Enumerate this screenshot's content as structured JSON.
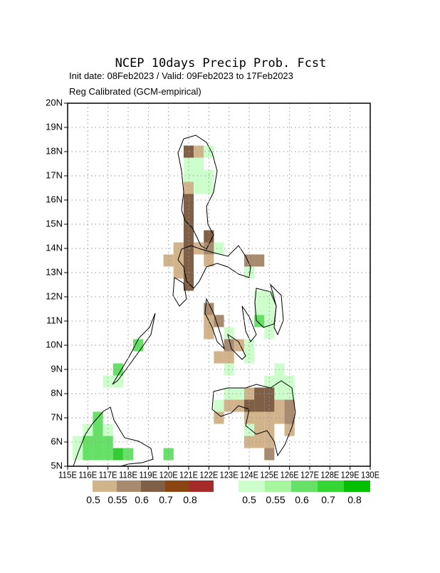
{
  "header": {
    "title": "NCEP 10days Precip Prob. Fcst",
    "line1": "Init date: 08Feb2023 / Valid: 09Feb2023 to 17Feb2023",
    "line2": "Reg Calibrated (GCM-empirical)"
  },
  "map": {
    "xlim": [
      115,
      130
    ],
    "ylim": [
      5,
      20
    ],
    "grid": true,
    "xticks": [
      {
        "value": 115,
        "label": "115E"
      },
      {
        "value": 116,
        "label": "116E"
      },
      {
        "value": 117,
        "label": "117E"
      },
      {
        "value": 118,
        "label": "118E"
      },
      {
        "value": 119,
        "label": "119E"
      },
      {
        "value": 120,
        "label": "120E"
      },
      {
        "value": 121,
        "label": "121E"
      },
      {
        "value": 122,
        "label": "122E"
      },
      {
        "value": 123,
        "label": "123E"
      },
      {
        "value": 124,
        "label": "124E"
      },
      {
        "value": 125,
        "label": "125E"
      },
      {
        "value": 126,
        "label": "126E"
      },
      {
        "value": 127,
        "label": "127E"
      },
      {
        "value": 128,
        "label": "128E"
      },
      {
        "value": 129,
        "label": "129E"
      },
      {
        "value": 130,
        "label": "130E"
      }
    ],
    "yticks": [
      {
        "value": 5,
        "label": "5N"
      },
      {
        "value": 6,
        "label": "6N"
      },
      {
        "value": 7,
        "label": "7N"
      },
      {
        "value": 8,
        "label": "8N"
      },
      {
        "value": 9,
        "label": "9N"
      },
      {
        "value": 10,
        "label": "10N"
      },
      {
        "value": 11,
        "label": "11N"
      },
      {
        "value": 12,
        "label": "12N"
      },
      {
        "value": 13,
        "label": "13N"
      },
      {
        "value": 14,
        "label": "14N"
      },
      {
        "value": 15,
        "label": "15N"
      },
      {
        "value": 16,
        "label": "16N"
      },
      {
        "value": 17,
        "label": "17N"
      },
      {
        "value": 18,
        "label": "18N"
      },
      {
        "value": 19,
        "label": "19N"
      },
      {
        "value": 20,
        "label": "20N"
      }
    ],
    "cells": [
      {
        "lon": 121,
        "lat": 18,
        "color": "#7f5f46"
      },
      {
        "lon": 121.5,
        "lat": 18,
        "color": "#d2b48c"
      },
      {
        "lon": 122,
        "lat": 18,
        "color": "#ccffcc"
      },
      {
        "lon": 121,
        "lat": 17.5,
        "color": "#ccffcc"
      },
      {
        "lon": 121.5,
        "lat": 17.5,
        "color": "#ccffcc"
      },
      {
        "lon": 121,
        "lat": 17,
        "color": "#ccffcc"
      },
      {
        "lon": 121.5,
        "lat": 17,
        "color": "#ccffcc"
      },
      {
        "lon": 122,
        "lat": 17,
        "color": "#ccffcc"
      },
      {
        "lon": 121,
        "lat": 16.5,
        "color": "#d2b48c"
      },
      {
        "lon": 121.5,
        "lat": 16.5,
        "color": "#ccffcc"
      },
      {
        "lon": 122,
        "lat": 16.5,
        "color": "#ccffcc"
      },
      {
        "lon": 121,
        "lat": 16,
        "color": "#7f5f46"
      },
      {
        "lon": 121,
        "lat": 15.5,
        "color": "#7f5f46"
      },
      {
        "lon": 121,
        "lat": 15,
        "color": "#7f5f46"
      },
      {
        "lon": 121,
        "lat": 14.5,
        "color": "#7f5f46"
      },
      {
        "lon": 122,
        "lat": 14.5,
        "color": "#7f5f46"
      },
      {
        "lon": 120.5,
        "lat": 14,
        "color": "#d2b48c"
      },
      {
        "lon": 121,
        "lat": 14,
        "color": "#7f5f46"
      },
      {
        "lon": 121.5,
        "lat": 14,
        "color": "#d2b48c"
      },
      {
        "lon": 122,
        "lat": 14,
        "color": "#a88a6e"
      },
      {
        "lon": 122.5,
        "lat": 14,
        "color": "#ccffcc"
      },
      {
        "lon": 120,
        "lat": 13.5,
        "color": "#d2b48c"
      },
      {
        "lon": 120.5,
        "lat": 13.5,
        "color": "#d2b48c"
      },
      {
        "lon": 121,
        "lat": 13.5,
        "color": "#7f5f46"
      },
      {
        "lon": 122,
        "lat": 13.5,
        "color": "#d2b48c"
      },
      {
        "lon": 124,
        "lat": 13.5,
        "color": "#a88a6e"
      },
      {
        "lon": 124.5,
        "lat": 13.5,
        "color": "#a88a6e"
      },
      {
        "lon": 120.5,
        "lat": 13,
        "color": "#d2b48c"
      },
      {
        "lon": 121,
        "lat": 13,
        "color": "#7f5f46"
      },
      {
        "lon": 124,
        "lat": 13,
        "color": "#ccffcc"
      },
      {
        "lon": 121,
        "lat": 12.5,
        "color": "#7f5f46"
      },
      {
        "lon": 124.5,
        "lat": 12,
        "color": "#ccffcc"
      },
      {
        "lon": 125,
        "lat": 12,
        "color": "#ccffcc"
      },
      {
        "lon": 122,
        "lat": 11.5,
        "color": "#a88a6e"
      },
      {
        "lon": 124.5,
        "lat": 11.5,
        "color": "#ccffcc"
      },
      {
        "lon": 125,
        "lat": 11.5,
        "color": "#ccffcc"
      },
      {
        "lon": 122,
        "lat": 11,
        "color": "#d2b48c"
      },
      {
        "lon": 122.5,
        "lat": 11,
        "color": "#a88a6e"
      },
      {
        "lon": 124.5,
        "lat": 11,
        "color": "#66e066"
      },
      {
        "lon": 125,
        "lat": 11,
        "color": "#ccffcc"
      },
      {
        "lon": 122,
        "lat": 10.5,
        "color": "#d2b48c"
      },
      {
        "lon": 123,
        "lat": 10.5,
        "color": "#ccffcc"
      },
      {
        "lon": 125,
        "lat": 10.5,
        "color": "#ccffcc"
      },
      {
        "lon": 123,
        "lat": 10,
        "color": "#a88a6e"
      },
      {
        "lon": 123.5,
        "lat": 10,
        "color": "#d2b48c"
      },
      {
        "lon": 124,
        "lat": 10,
        "color": "#ccffcc"
      },
      {
        "lon": 122.5,
        "lat": 9.5,
        "color": "#d2b48c"
      },
      {
        "lon": 123,
        "lat": 9.5,
        "color": "#d2b48c"
      },
      {
        "lon": 124,
        "lat": 9.5,
        "color": "#ccffcc"
      },
      {
        "lon": 123,
        "lat": 9,
        "color": "#ccffcc"
      },
      {
        "lon": 125.5,
        "lat": 9,
        "color": "#ccffcc"
      },
      {
        "lon": 125,
        "lat": 8.5,
        "color": "#ccffcc"
      },
      {
        "lon": 125.5,
        "lat": 8.5,
        "color": "#ccffcc"
      },
      {
        "lon": 126,
        "lat": 8.5,
        "color": "#ccffcc"
      },
      {
        "lon": 123,
        "lat": 8,
        "color": "#ccffcc"
      },
      {
        "lon": 123.5,
        "lat": 8,
        "color": "#ccffcc"
      },
      {
        "lon": 124,
        "lat": 8,
        "color": "#d2b48c"
      },
      {
        "lon": 124.5,
        "lat": 8,
        "color": "#7f5f46"
      },
      {
        "lon": 125,
        "lat": 8,
        "color": "#7f5f46"
      },
      {
        "lon": 125.5,
        "lat": 8,
        "color": "#ccffcc"
      },
      {
        "lon": 126,
        "lat": 8,
        "color": "#ccffcc"
      },
      {
        "lon": 122.5,
        "lat": 7.5,
        "color": "#ccffcc"
      },
      {
        "lon": 123,
        "lat": 7.5,
        "color": "#d2b48c"
      },
      {
        "lon": 123.5,
        "lat": 7.5,
        "color": "#d2b48c"
      },
      {
        "lon": 124,
        "lat": 7.5,
        "color": "#7f5f46"
      },
      {
        "lon": 124.5,
        "lat": 7.5,
        "color": "#7f5f46"
      },
      {
        "lon": 125,
        "lat": 7.5,
        "color": "#7f5f46"
      },
      {
        "lon": 125.5,
        "lat": 7.5,
        "color": "#d2b48c"
      },
      {
        "lon": 126,
        "lat": 7.5,
        "color": "#a88a6e"
      },
      {
        "lon": 122.5,
        "lat": 7,
        "color": "#d2b48c"
      },
      {
        "lon": 124,
        "lat": 7,
        "color": "#d2b48c"
      },
      {
        "lon": 124.5,
        "lat": 7,
        "color": "#d2b48c"
      },
      {
        "lon": 125,
        "lat": 7,
        "color": "#d2b48c"
      },
      {
        "lon": 125.5,
        "lat": 7,
        "color": "#d2b48c"
      },
      {
        "lon": 126,
        "lat": 7,
        "color": "#a88a6e"
      },
      {
        "lon": 124,
        "lat": 6.5,
        "color": "#ccffcc"
      },
      {
        "lon": 124.5,
        "lat": 6.5,
        "color": "#d2b48c"
      },
      {
        "lon": 125,
        "lat": 6.5,
        "color": "#d2b48c"
      },
      {
        "lon": 126,
        "lat": 6.5,
        "color": "#d2b48c"
      },
      {
        "lon": 124,
        "lat": 6,
        "color": "#d2b48c"
      },
      {
        "lon": 124.5,
        "lat": 6,
        "color": "#d2b48c"
      },
      {
        "lon": 125,
        "lat": 6,
        "color": "#d2b48c"
      },
      {
        "lon": 125,
        "lat": 5.5,
        "color": "#a88a6e"
      },
      {
        "lon": 118.5,
        "lat": 10,
        "color": "#66e066"
      },
      {
        "lon": 117.5,
        "lat": 9,
        "color": "#66e066"
      },
      {
        "lon": 117,
        "lat": 8.5,
        "color": "#ccffcc"
      },
      {
        "lon": 117.5,
        "lat": 8.5,
        "color": "#ccffcc"
      },
      {
        "lon": 116.5,
        "lat": 7,
        "color": "#66e066"
      },
      {
        "lon": 116,
        "lat": 6.5,
        "color": "#ccffcc"
      },
      {
        "lon": 116.5,
        "lat": 6.5,
        "color": "#66e066"
      },
      {
        "lon": 117,
        "lat": 6.5,
        "color": "#ccffcc"
      },
      {
        "lon": 115.5,
        "lat": 6,
        "color": "#ccffcc"
      },
      {
        "lon": 116,
        "lat": 6,
        "color": "#66e066"
      },
      {
        "lon": 116.5,
        "lat": 6,
        "color": "#66e066"
      },
      {
        "lon": 117,
        "lat": 6,
        "color": "#66e066"
      },
      {
        "lon": 115.5,
        "lat": 5.5,
        "color": "#ccffcc"
      },
      {
        "lon": 116,
        "lat": 5.5,
        "color": "#66e066"
      },
      {
        "lon": 116.5,
        "lat": 5.5,
        "color": "#66e066"
      },
      {
        "lon": 117,
        "lat": 5.5,
        "color": "#66e066"
      },
      {
        "lon": 117.5,
        "lat": 5.5,
        "color": "#33cc33"
      },
      {
        "lon": 118,
        "lat": 5.5,
        "color": "#66e066"
      },
      {
        "lon": 120,
        "lat": 5.5,
        "color": "#66e066"
      }
    ]
  },
  "legend": [
    {
      "colors": [
        "#d2b48c",
        "#a88a6e",
        "#7f5f46",
        "#8b4513",
        "#a52a2a"
      ],
      "labels": [
        0.5,
        0.55,
        0.6,
        0.7,
        0.8
      ]
    },
    {
      "colors": [
        "#ccffcc",
        "#a8f5a0",
        "#66e066",
        "#33d633",
        "#00c000"
      ],
      "labels": [
        0.5,
        0.55,
        0.6,
        0.7,
        0.8
      ]
    }
  ]
}
